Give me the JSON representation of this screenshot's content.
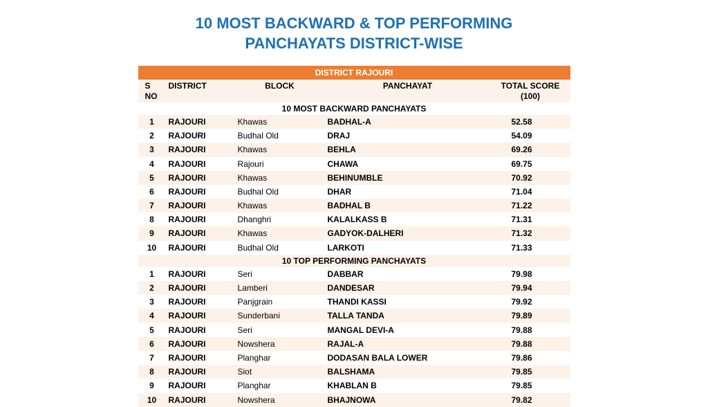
{
  "title_line1": "10 MOST BACKWARD & TOP PERFORMING",
  "title_line2": "PANCHAYATS DISTRICT-WISE",
  "district_header": "DISTRICT RAJOURI",
  "columns": {
    "sno": "S NO",
    "district": "DISTRICT",
    "block": "BLOCK",
    "panchayat": "PANCHAYAT",
    "score": "TOTAL SCORE (100)"
  },
  "section1_title": "10 MOST BACKWARD PANCHAYATS",
  "section2_title": "10 TOP PERFORMING PANCHAYATS",
  "colors": {
    "title": "#1f6fb5",
    "header_bg": "#ed7d31",
    "header_fg": "#ffffff",
    "row_even": "#fdf2e9",
    "row_odd": "#ffffff"
  },
  "backward": [
    {
      "sno": "1",
      "district": "RAJOURI",
      "block": "Khawas",
      "panchayat": "BADHAL-A",
      "score": "52.58"
    },
    {
      "sno": "2",
      "district": "RAJOURI",
      "block": "Budhal Old",
      "panchayat": "DRAJ",
      "score": "54.09"
    },
    {
      "sno": "3",
      "district": "RAJOURI",
      "block": "Khawas",
      "panchayat": "BEHLA",
      "score": "69.26"
    },
    {
      "sno": "4",
      "district": "RAJOURI",
      "block": "Rajouri",
      "panchayat": "CHAWA",
      "score": "69.75"
    },
    {
      "sno": "5",
      "district": "RAJOURI",
      "block": "Khawas",
      "panchayat": "BEHINUMBLE",
      "score": "70.92"
    },
    {
      "sno": "6",
      "district": "RAJOURI",
      "block": "Budhal Old",
      "panchayat": "DHAR",
      "score": "71.04"
    },
    {
      "sno": "7",
      "district": "RAJOURI",
      "block": "Khawas",
      "panchayat": "BADHAL B",
      "score": "71.22"
    },
    {
      "sno": "8",
      "district": "RAJOURI",
      "block": "Dhanghri",
      "panchayat": "KALALKASS B",
      "score": "71.31"
    },
    {
      "sno": "9",
      "district": "RAJOURI",
      "block": "Khawas",
      "panchayat": "GADYOK-DALHERI",
      "score": "71.32"
    },
    {
      "sno": "10",
      "district": "RAJOURI",
      "block": "Budhal Old",
      "panchayat": "LARKOTI",
      "score": "71.33"
    }
  ],
  "top": [
    {
      "sno": "1",
      "district": "RAJOURI",
      "block": "Seri",
      "panchayat": "DABBAR",
      "score": "79.98"
    },
    {
      "sno": "2",
      "district": "RAJOURI",
      "block": "Lamberi",
      "panchayat": "DANDESAR",
      "score": "79.94"
    },
    {
      "sno": "3",
      "district": "RAJOURI",
      "block": "Panjgrain",
      "panchayat": "THANDI KASSI",
      "score": "79.92"
    },
    {
      "sno": "4",
      "district": "RAJOURI",
      "block": "Sunderbani",
      "panchayat": "TALLA TANDA",
      "score": "79.89"
    },
    {
      "sno": "5",
      "district": "RAJOURI",
      "block": "Seri",
      "panchayat": "MANGAL DEVI-A",
      "score": "79.88"
    },
    {
      "sno": "6",
      "district": "RAJOURI",
      "block": "Nowshera",
      "panchayat": "RAJAL-A",
      "score": "79.88"
    },
    {
      "sno": "7",
      "district": "RAJOURI",
      "block": "Planghar",
      "panchayat": "DODASAN BALA LOWER",
      "score": "79.86"
    },
    {
      "sno": "8",
      "district": "RAJOURI",
      "block": "Siot",
      "panchayat": "BALSHAMA",
      "score": "79.85"
    },
    {
      "sno": "9",
      "district": "RAJOURI",
      "block": "Planghar",
      "panchayat": "KHABLAN B",
      "score": "79.85"
    },
    {
      "sno": "10",
      "district": "RAJOURI",
      "block": "Nowshera",
      "panchayat": "BHAJNOWA",
      "score": "79.82"
    }
  ]
}
